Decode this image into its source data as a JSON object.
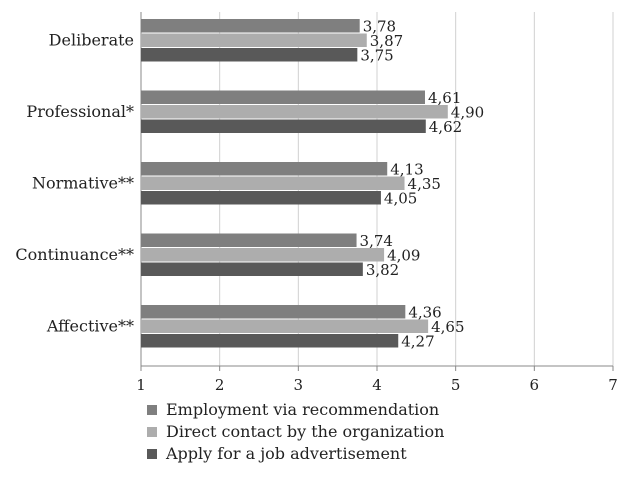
{
  "chart_data": {
    "type": "bar",
    "orientation": "horizontal",
    "categories": [
      "Deliberate",
      "Professional*",
      "Normative**",
      "Continuance**",
      "Affective**"
    ],
    "series": [
      {
        "name": "Employment via recommendation",
        "color": "#7f7f7f",
        "values": [
          3.78,
          4.61,
          4.13,
          3.74,
          4.36
        ],
        "labels": [
          "3,78",
          "4,61",
          "4,13",
          "3,74",
          "4,36"
        ]
      },
      {
        "name": "Direct contact by the organization",
        "color": "#adadad",
        "values": [
          3.87,
          4.9,
          4.35,
          4.09,
          4.65
        ],
        "labels": [
          "3,87",
          "4,90",
          "4,35",
          "4,09",
          "4,65"
        ]
      },
      {
        "name": "Apply for a job advertisement",
        "color": "#595959",
        "values": [
          3.75,
          4.62,
          4.05,
          3.82,
          4.27
        ],
        "labels": [
          "3,75",
          "4,62",
          "4,05",
          "3,82",
          "4,27"
        ]
      }
    ],
    "x_ticks": [
      "1",
      "2",
      "3",
      "4",
      "5",
      "6",
      "7"
    ],
    "xlim": [
      1,
      7
    ],
    "grid": "vertical",
    "legend_position": "bottom",
    "title": "",
    "xlabel": "",
    "ylabel": ""
  }
}
